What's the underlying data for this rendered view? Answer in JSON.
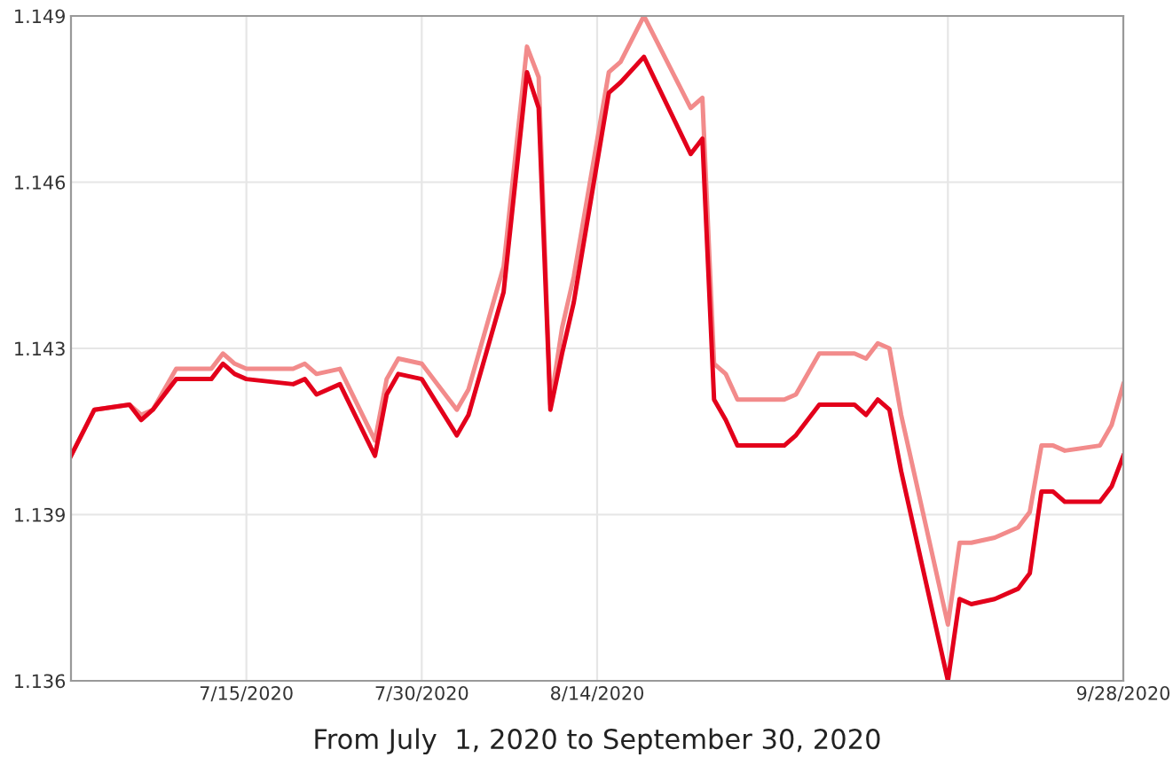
{
  "chart_data": {
    "type": "line",
    "xlabel": "From July  1, 2020 to September 30, 2020",
    "x": [
      "2020-06-30",
      "2020-07-02",
      "2020-07-05",
      "2020-07-06",
      "2020-07-07",
      "2020-07-09",
      "2020-07-12",
      "2020-07-13",
      "2020-07-14",
      "2020-07-15",
      "2020-07-19",
      "2020-07-20",
      "2020-07-21",
      "2020-07-23",
      "2020-07-26",
      "2020-07-27",
      "2020-07-28",
      "2020-07-30",
      "2020-08-02",
      "2020-08-03",
      "2020-08-06",
      "2020-08-08",
      "2020-08-09",
      "2020-08-10",
      "2020-08-11",
      "2020-08-12",
      "2020-08-15",
      "2020-08-16",
      "2020-08-18",
      "2020-08-22",
      "2020-08-23",
      "2020-08-24",
      "2020-08-25",
      "2020-08-26",
      "2020-08-30",
      "2020-08-31",
      "2020-09-02",
      "2020-09-05",
      "2020-09-06",
      "2020-09-07",
      "2020-09-08",
      "2020-09-09",
      "2020-09-13",
      "2020-09-14",
      "2020-09-15",
      "2020-09-17",
      "2020-09-19",
      "2020-09-20",
      "2020-09-21",
      "2020-09-22",
      "2020-09-23",
      "2020-09-26",
      "2020-09-27",
      "2020-09-28"
    ],
    "series": [
      {
        "color": "#f28b8b",
        "values": [
          1.1404,
          1.1413,
          1.1414,
          1.1412,
          1.1413,
          1.1421,
          1.1421,
          1.1424,
          1.1422,
          1.1421,
          1.1421,
          1.1422,
          1.142,
          1.1421,
          1.1407,
          1.1419,
          1.1423,
          1.1422,
          1.1413,
          1.1417,
          1.1441,
          1.1484,
          1.1478,
          1.1414,
          1.1429,
          1.1439,
          1.1479,
          1.1481,
          1.149,
          1.1472,
          1.1474,
          1.1422,
          1.142,
          1.1415,
          1.1415,
          1.1416,
          1.1424,
          1.1424,
          1.1423,
          1.1426,
          1.1425,
          1.1412,
          1.1371,
          1.1387,
          1.1387,
          1.1388,
          1.139,
          1.1393,
          1.1406,
          1.1406,
          1.1405,
          1.1406,
          1.141,
          1.1418
        ]
      },
      {
        "color": "#e3001b",
        "values": [
          1.1404,
          1.1413,
          1.1414,
          1.1411,
          1.1413,
          1.1419,
          1.1419,
          1.1422,
          1.142,
          1.1419,
          1.1418,
          1.1419,
          1.1416,
          1.1418,
          1.1404,
          1.1416,
          1.142,
          1.1419,
          1.1408,
          1.1412,
          1.1436,
          1.1479,
          1.1472,
          1.1413,
          1.1424,
          1.1434,
          1.1475,
          1.1477,
          1.1482,
          1.1463,
          1.1466,
          1.1415,
          1.1411,
          1.1406,
          1.1406,
          1.1408,
          1.1414,
          1.1414,
          1.1412,
          1.1415,
          1.1413,
          1.1401,
          1.136,
          1.1376,
          1.1375,
          1.1376,
          1.1378,
          1.1381,
          1.1397,
          1.1397,
          1.1395,
          1.1395,
          1.1398,
          1.1404
        ]
      }
    ],
    "xlim": [
      "2020-06-30",
      "2020-09-28"
    ],
    "xticks": [
      {
        "value": "2020-07-15",
        "label": "7/15/2020"
      },
      {
        "value": "2020-07-30",
        "label": "7/30/2020"
      },
      {
        "value": "2020-08-14",
        "label": "8/14/2020"
      },
      {
        "value": "2020-09-13",
        "label": null
      },
      {
        "value": "2020-09-28",
        "label": "9/28/2020"
      }
    ],
    "ylim": [
      1.136,
      1.149
    ],
    "yticks": [
      1.136,
      {
        "value": 1.13925,
        "label": "1.139"
      },
      {
        "value": 1.1425,
        "label": "1.143"
      },
      {
        "value": 1.14575,
        "label": "1.146"
      },
      1.149
    ],
    "grid": true,
    "line_style": "solid",
    "marker": "none"
  }
}
